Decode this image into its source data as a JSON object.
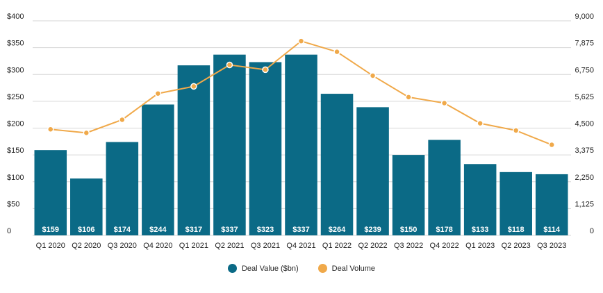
{
  "chart_data": {
    "type": "bar+line",
    "categories": [
      "Q1 2020",
      "Q2 2020",
      "Q3 2020",
      "Q4 2020",
      "Q1 2021",
      "Q2 2021",
      "Q3 2021",
      "Q4 2021",
      "Q1 2022",
      "Q2 2022",
      "Q3 2022",
      "Q4 2022",
      "Q1 2023",
      "Q2 2023",
      "Q3 2023"
    ],
    "series": [
      {
        "name": "Deal Value ($bn)",
        "type": "bar",
        "axis": "left",
        "color": "#0b6a86",
        "values": [
          159,
          106,
          174,
          244,
          317,
          337,
          323,
          337,
          264,
          239,
          150,
          178,
          133,
          118,
          114
        ],
        "labels": [
          "$159",
          "$106",
          "$174",
          "$244",
          "$317",
          "$337",
          "$323",
          "$337",
          "$264",
          "$239",
          "$150",
          "$178",
          "$133",
          "$118",
          "$114"
        ]
      },
      {
        "name": "Deal Volume",
        "type": "line",
        "axis": "right",
        "color": "#f0a94a",
        "values": [
          4450,
          4300,
          4850,
          5950,
          6250,
          7150,
          6950,
          8150,
          7700,
          6700,
          5800,
          5550,
          4700,
          4400,
          3800
        ]
      }
    ],
    "y_left": {
      "min": 0,
      "max": 400,
      "ticks": [
        0,
        50,
        100,
        150,
        200,
        250,
        300,
        350,
        400
      ],
      "tick_labels": [
        "0",
        "$50",
        "$100",
        "$150",
        "$200",
        "$250",
        "$300",
        "$350",
        "$400"
      ]
    },
    "y_right": {
      "min": 0,
      "max": 9000,
      "ticks": [
        0,
        1125,
        2250,
        3375,
        4500,
        5625,
        6750,
        7875,
        9000
      ],
      "tick_labels": [
        "0",
        "1,125",
        "2,250",
        "3,375",
        "4,500",
        "5,625",
        "6,750",
        "7,875",
        "9,000"
      ]
    },
    "grid": true,
    "legend_position": "bottom-center"
  }
}
